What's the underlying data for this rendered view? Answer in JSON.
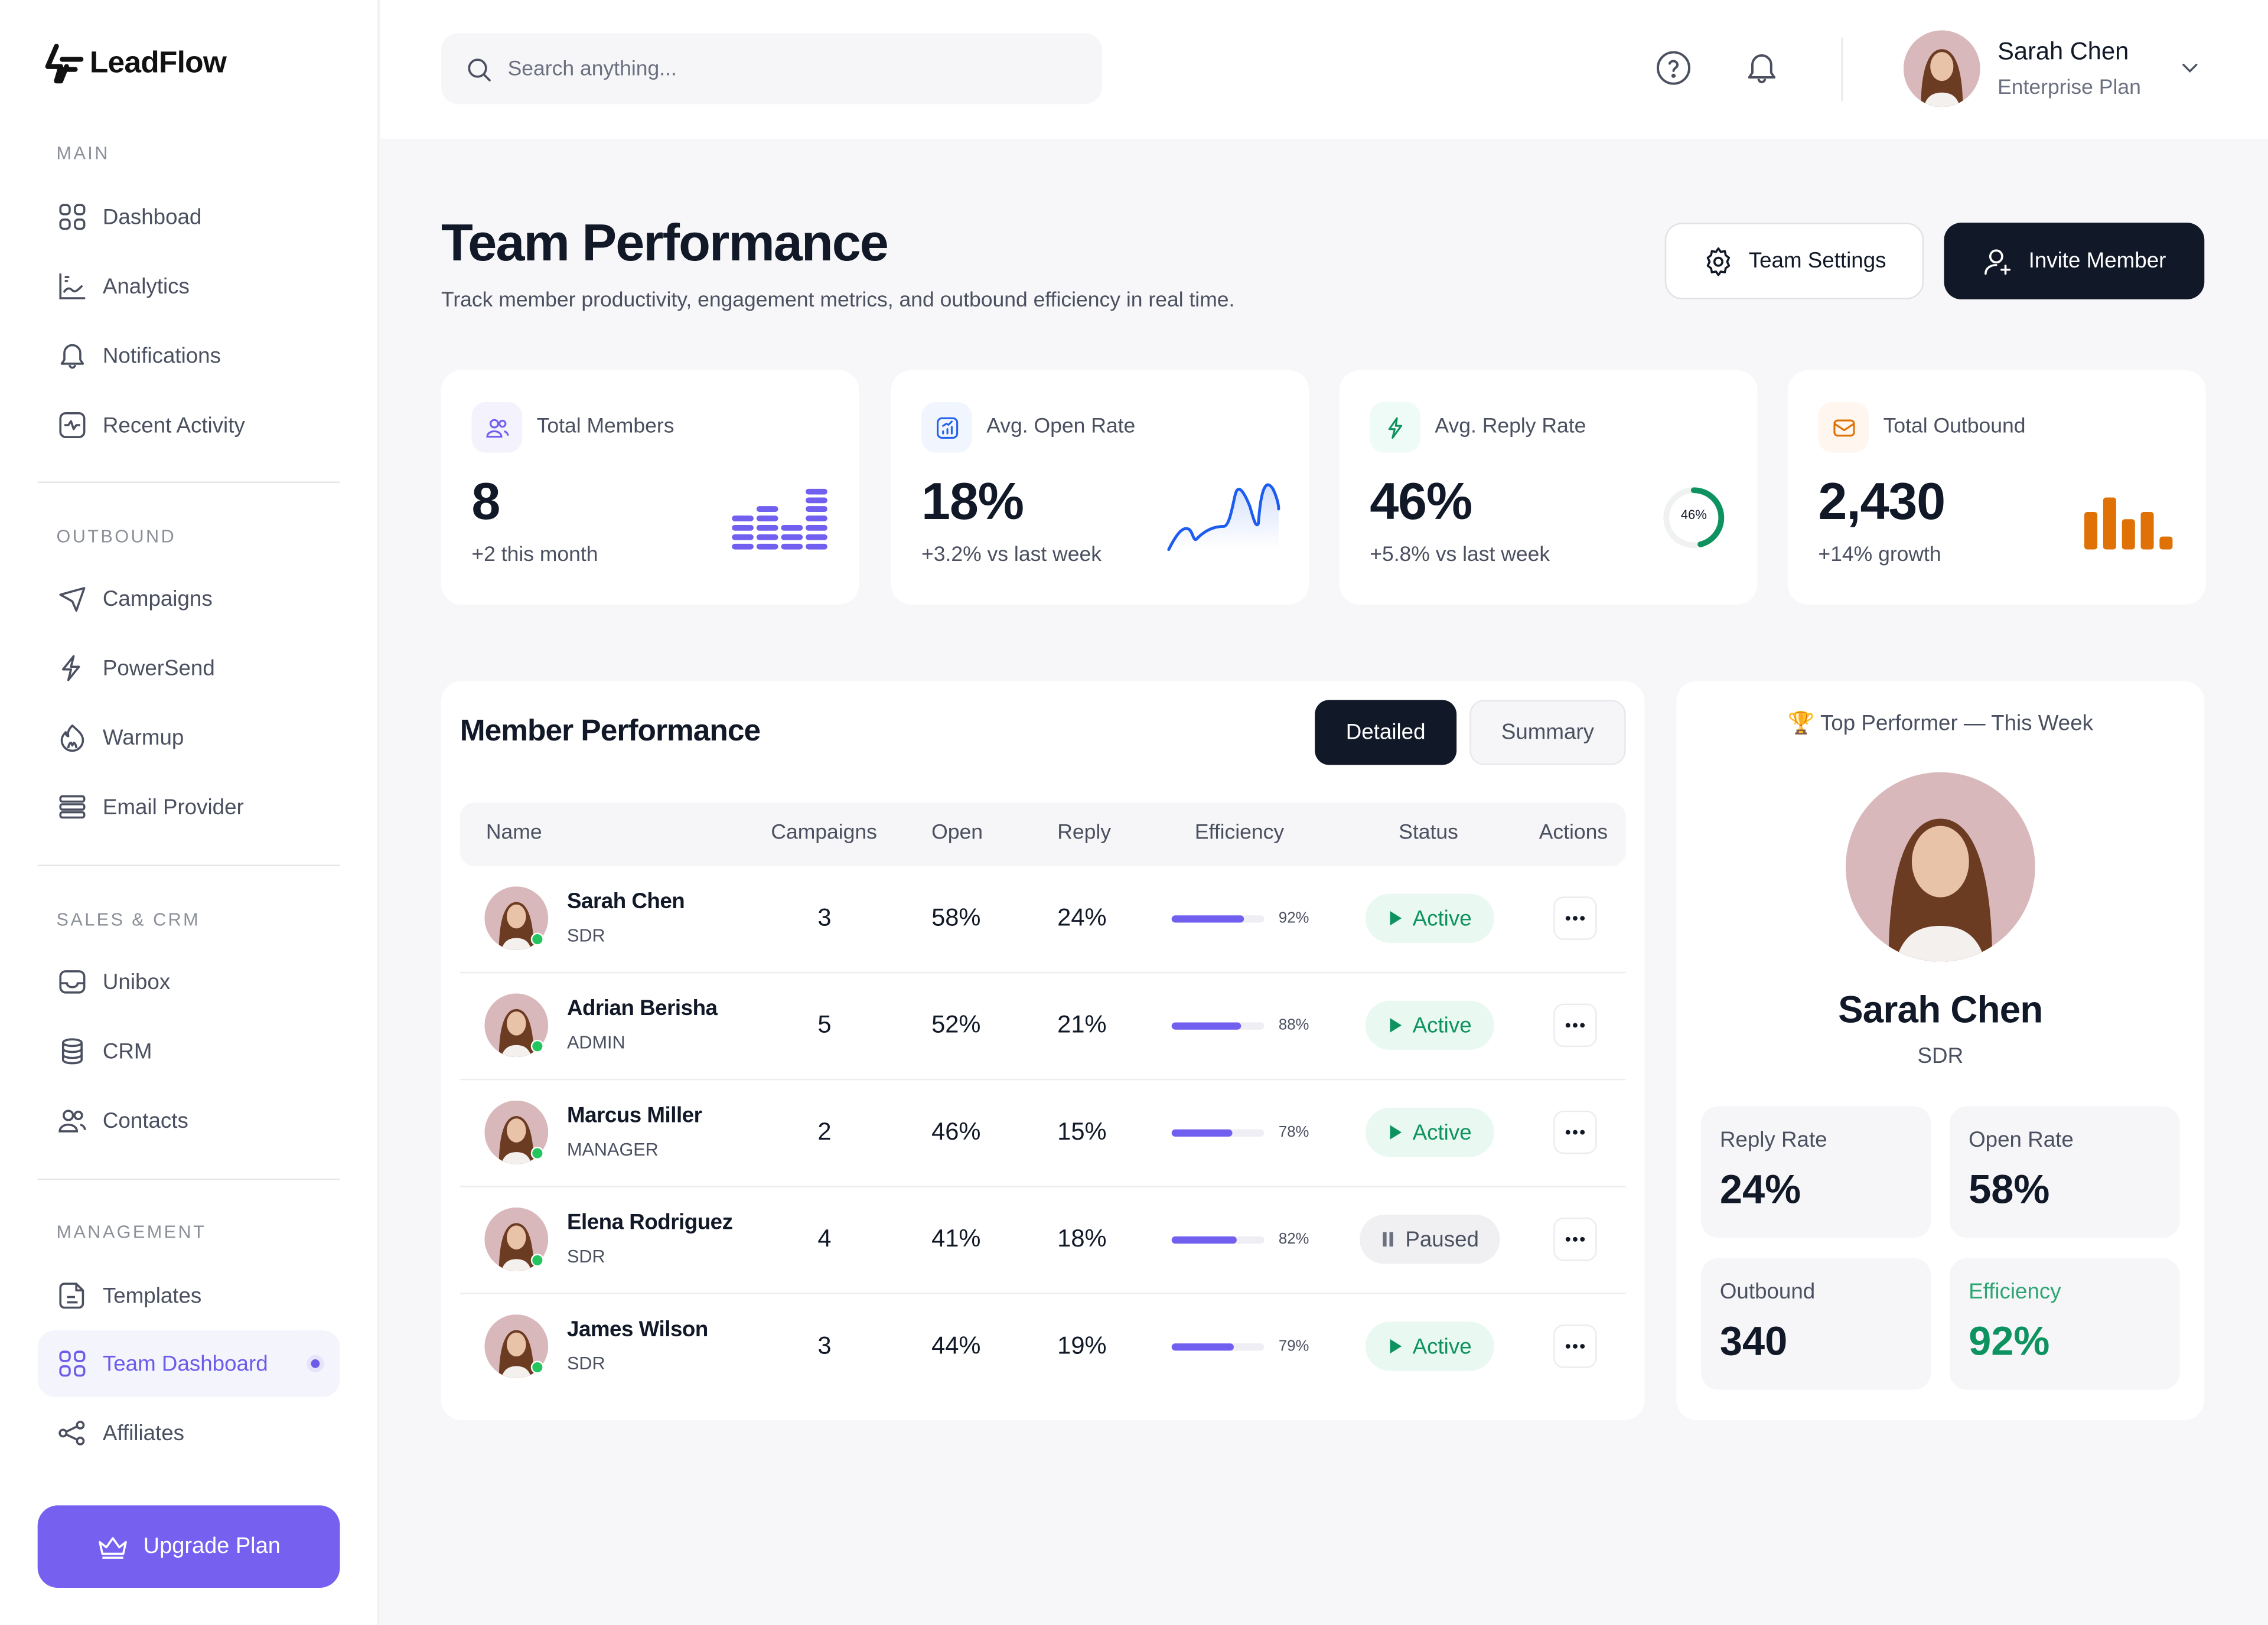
{
  "brand": {
    "name": "LeadFlow"
  },
  "sidebar": {
    "sections": [
      {
        "label": "MAIN",
        "items": [
          {
            "label": "Dashboad",
            "icon": "grid-icon"
          },
          {
            "label": "Analytics",
            "icon": "chart-line-icon"
          },
          {
            "label": "Notifications",
            "icon": "bell-icon"
          },
          {
            "label": "Recent Activity",
            "icon": "activity-icon"
          }
        ]
      },
      {
        "label": "OUTBOUND",
        "items": [
          {
            "label": "Campaigns",
            "icon": "send-icon"
          },
          {
            "label": "PowerSend",
            "icon": "bolt-icon"
          },
          {
            "label": "Warmup",
            "icon": "flame-icon"
          },
          {
            "label": "Email Provider",
            "icon": "server-icon"
          }
        ]
      },
      {
        "label": "SALES & CRM",
        "items": [
          {
            "label": "Unibox",
            "icon": "inbox-icon"
          },
          {
            "label": "CRM",
            "icon": "database-icon"
          },
          {
            "label": "Contacts",
            "icon": "users-icon"
          }
        ]
      },
      {
        "label": "MANAGEMENT",
        "items": [
          {
            "label": "Templates",
            "icon": "file-icon"
          },
          {
            "label": "Team Dashboard",
            "icon": "grid-icon",
            "active": true
          },
          {
            "label": "Affiliates",
            "icon": "share-icon"
          }
        ]
      }
    ],
    "upgrade_label": "Upgrade Plan"
  },
  "topbar": {
    "search_placeholder": "Search anything...",
    "user": {
      "name": "Sarah Chen",
      "plan": "Enterprise Plan"
    }
  },
  "header": {
    "title": "Team Performance",
    "subtitle": "Track member productivity, engagement metrics, and outbound efficiency in real time.",
    "team_settings_label": "Team Settings",
    "invite_member_label": "Invite Member"
  },
  "stats": [
    {
      "label": "Total Members",
      "value": "8",
      "delta": "+2 this month",
      "color": "#7160f0",
      "icon_bg": "#f3f2fd"
    },
    {
      "label": "Avg. Open Rate",
      "value": "18%",
      "delta": "+3.2% vs last week",
      "color": "#2563eb",
      "icon_bg": "#f1f5fe"
    },
    {
      "label": "Avg. Reply Rate",
      "value": "46%",
      "delta": "+5.8% vs last week",
      "color": "#0e9360",
      "icon_bg": "#effbf6",
      "ring_label": "46%"
    },
    {
      "label": "Total Outbound",
      "value": "2,430",
      "delta": "+14% growth",
      "color": "#e07106",
      "icon_bg": "#fff6ef"
    }
  ],
  "chart_data": [
    {
      "type": "bar",
      "title": "Total Members sparkline",
      "categories": [
        "1",
        "2",
        "3",
        "4"
      ],
      "values": [
        4,
        5,
        3,
        8
      ],
      "note": "stacked segment count"
    },
    {
      "type": "area",
      "title": "Avg. Open Rate sparkline",
      "x": [
        0,
        1,
        2,
        3,
        4,
        5,
        6,
        7,
        8
      ],
      "values": [
        0,
        6,
        4,
        7,
        8,
        17,
        6,
        18,
        13
      ]
    },
    {
      "type": "pie",
      "title": "Avg. Reply Rate ring",
      "values": [
        46,
        54
      ],
      "categories": [
        "Reply",
        "Remaining"
      ]
    },
    {
      "type": "bar",
      "title": "Total Outbound sparkline",
      "categories": [
        "1",
        "2",
        "3",
        "4",
        "5"
      ],
      "values": [
        5,
        8,
        4,
        5,
        1.5
      ]
    }
  ],
  "members_table": {
    "title": "Member Performance",
    "view_tabs": [
      "Detailed",
      "Summary"
    ],
    "active_view": "Detailed",
    "columns": [
      "Name",
      "Campaigns",
      "Open",
      "Reply",
      "Efficiency",
      "Status",
      "Actions"
    ],
    "rows": [
      {
        "name": "Sarah Chen",
        "role": "SDR",
        "campaigns": "3",
        "open": "58%",
        "reply": "24%",
        "efficiency": 92,
        "efficiency_label": "92%",
        "status": "Active"
      },
      {
        "name": "Adrian Berisha",
        "role": "ADMIN",
        "campaigns": "5",
        "open": "52%",
        "reply": "21%",
        "efficiency": 88,
        "efficiency_label": "88%",
        "status": "Active"
      },
      {
        "name": "Marcus Miller",
        "role": "MANAGER",
        "campaigns": "2",
        "open": "46%",
        "reply": "15%",
        "efficiency": 78,
        "efficiency_label": "78%",
        "status": "Active"
      },
      {
        "name": "Elena Rodriguez",
        "role": "SDR",
        "campaigns": "4",
        "open": "41%",
        "reply": "18%",
        "efficiency": 82,
        "efficiency_label": "82%",
        "status": "Paused"
      },
      {
        "name": "James Wilson",
        "role": "SDR",
        "campaigns": "3",
        "open": "44%",
        "reply": "19%",
        "efficiency": 79,
        "efficiency_label": "79%",
        "status": "Active"
      }
    ]
  },
  "top_performer": {
    "heading": "🏆 Top Performer — This Week",
    "name": "Sarah Chen",
    "role": "SDR",
    "metrics": [
      {
        "label": "Reply Rate",
        "value": "24%"
      },
      {
        "label": "Open Rate",
        "value": "58%"
      },
      {
        "label": "Outbound",
        "value": "340"
      },
      {
        "label": "Efficiency",
        "value": "92%",
        "highlight": "#0e9360"
      }
    ]
  },
  "colors": {
    "accent": "#7560f0",
    "dark": "#111827",
    "success": "#0e9360",
    "orange": "#e07106",
    "blue": "#2563eb"
  }
}
